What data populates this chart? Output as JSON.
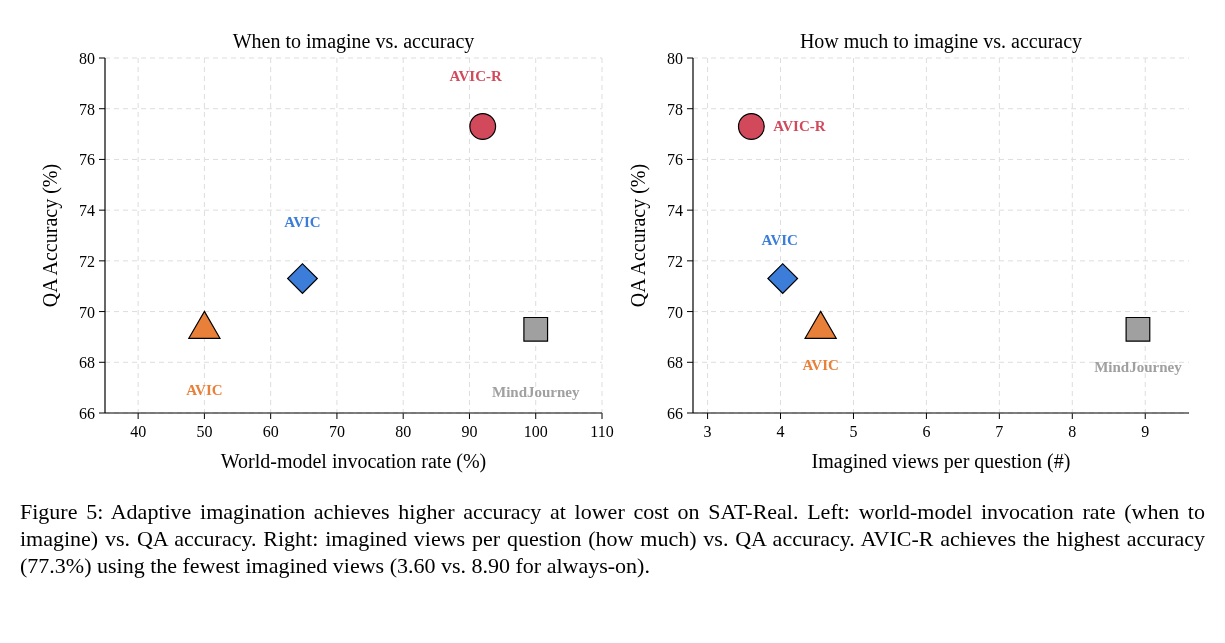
{
  "chart_data": [
    {
      "type": "scatter",
      "title": "When to imagine vs. accuracy",
      "xlabel": "World-model invocation rate (%)",
      "ylabel": "QA Accuracy (%)",
      "xlim": [
        35,
        110
      ],
      "xticks": [
        40,
        50,
        60,
        70,
        80,
        90,
        100,
        110
      ],
      "ylim": [
        66,
        80
      ],
      "yticks": [
        66,
        68,
        70,
        72,
        74,
        76,
        78,
        80
      ],
      "grid": true,
      "series": [
        {
          "name": "AVIC-R",
          "color": "#d1495b",
          "marker": "circle",
          "x": [
            92
          ],
          "values": [
            77.3
          ]
        },
        {
          "name": "AVIC",
          "color": "#3b7dd8",
          "marker": "diamond",
          "x": [
            64.8
          ],
          "values": [
            71.3
          ]
        },
        {
          "name": "AVIC",
          "color": "#e8803a",
          "marker": "triangle",
          "x": [
            50
          ],
          "values": [
            69.3
          ]
        },
        {
          "name": "MindJourney",
          "color": "#a0a0a0",
          "marker": "square",
          "x": [
            100
          ],
          "values": [
            69.3
          ]
        }
      ],
      "annotations": [
        "Figure 5: Adaptive imagination achieves higher accuracy at lower cost on SAT-Real. Left: world-model invocation rate (when to imagine) vs. QA accuracy. Right: imagined views per question (how much) vs. QA accuracy. AVIC-R achieves the highest accuracy (77.3%) using the fewest imagined views (3.60 vs. 8.90 for always-on)."
      ]
    },
    {
      "type": "scatter",
      "title": "How much to imagine vs. accuracy",
      "xlabel": "Imagined views per question (#)",
      "ylabel": "QA Accuracy (%)",
      "xlim": [
        2.8,
        9.6
      ],
      "xticks": [
        3,
        4,
        5,
        6,
        7,
        8,
        9
      ],
      "ylim": [
        66,
        80
      ],
      "yticks": [
        66,
        68,
        70,
        72,
        74,
        76,
        78,
        80
      ],
      "grid": true,
      "series": [
        {
          "name": "AVIC-R",
          "color": "#d1495b",
          "marker": "circle",
          "x": [
            3.6
          ],
          "values": [
            77.3
          ]
        },
        {
          "name": "AVIC",
          "color": "#3b7dd8",
          "marker": "diamond",
          "x": [
            4.03
          ],
          "values": [
            71.3
          ]
        },
        {
          "name": "AVIC",
          "color": "#e8803a",
          "marker": "triangle",
          "x": [
            4.55
          ],
          "values": [
            69.3
          ]
        },
        {
          "name": "MindJourney",
          "color": "#a0a0a0",
          "marker": "square",
          "x": [
            8.9
          ],
          "values": [
            69.3
          ]
        }
      ]
    }
  ]
}
